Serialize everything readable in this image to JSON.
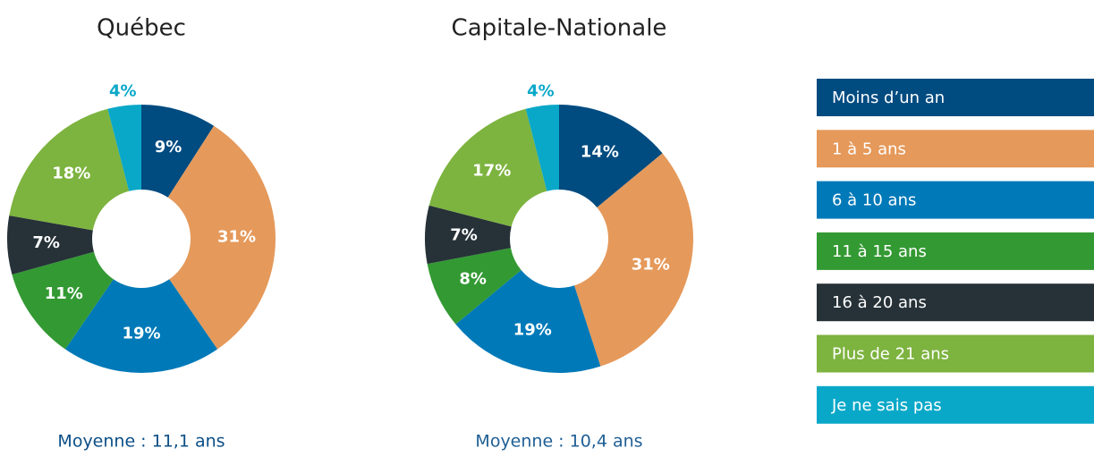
{
  "chart_data": [
    {
      "type": "pie",
      "title": "Québec",
      "categories": [
        "Moins d’un an",
        "1 à 5 ans",
        "6 à 10 ans",
        "11 à 15 ans",
        "16 à 20 ans",
        "Plus de 21 ans",
        "Je ne sais pas"
      ],
      "values": [
        9,
        31,
        19,
        11,
        7,
        18,
        4
      ],
      "value_labels": [
        "9%",
        "31%",
        "19%",
        "11%",
        "7%",
        "18%",
        "4%"
      ],
      "colors": [
        "#004b80",
        "#e5995a",
        "#0079b8",
        "#339933",
        "#263238",
        "#7db33f",
        "#0aa8c8"
      ],
      "caption": "Moyenne : 11,1 ans"
    },
    {
      "type": "pie",
      "title": "Capitale-Nationale",
      "categories": [
        "Moins d’un an",
        "1 à 5 ans",
        "6 à 10 ans",
        "11 à 15 ans",
        "16 à 20 ans",
        "Plus de 21 ans",
        "Je ne sais pas"
      ],
      "values": [
        14,
        31,
        19,
        8,
        7,
        17,
        4
      ],
      "value_labels": [
        "14%",
        "31%",
        "19%",
        "8%",
        "7%",
        "17%",
        "4%"
      ],
      "colors": [
        "#004b80",
        "#e5995a",
        "#0079b8",
        "#339933",
        "#263238",
        "#7db33f",
        "#0aa8c8"
      ],
      "caption": "Moyenne : 10,4 ans"
    }
  ]
}
